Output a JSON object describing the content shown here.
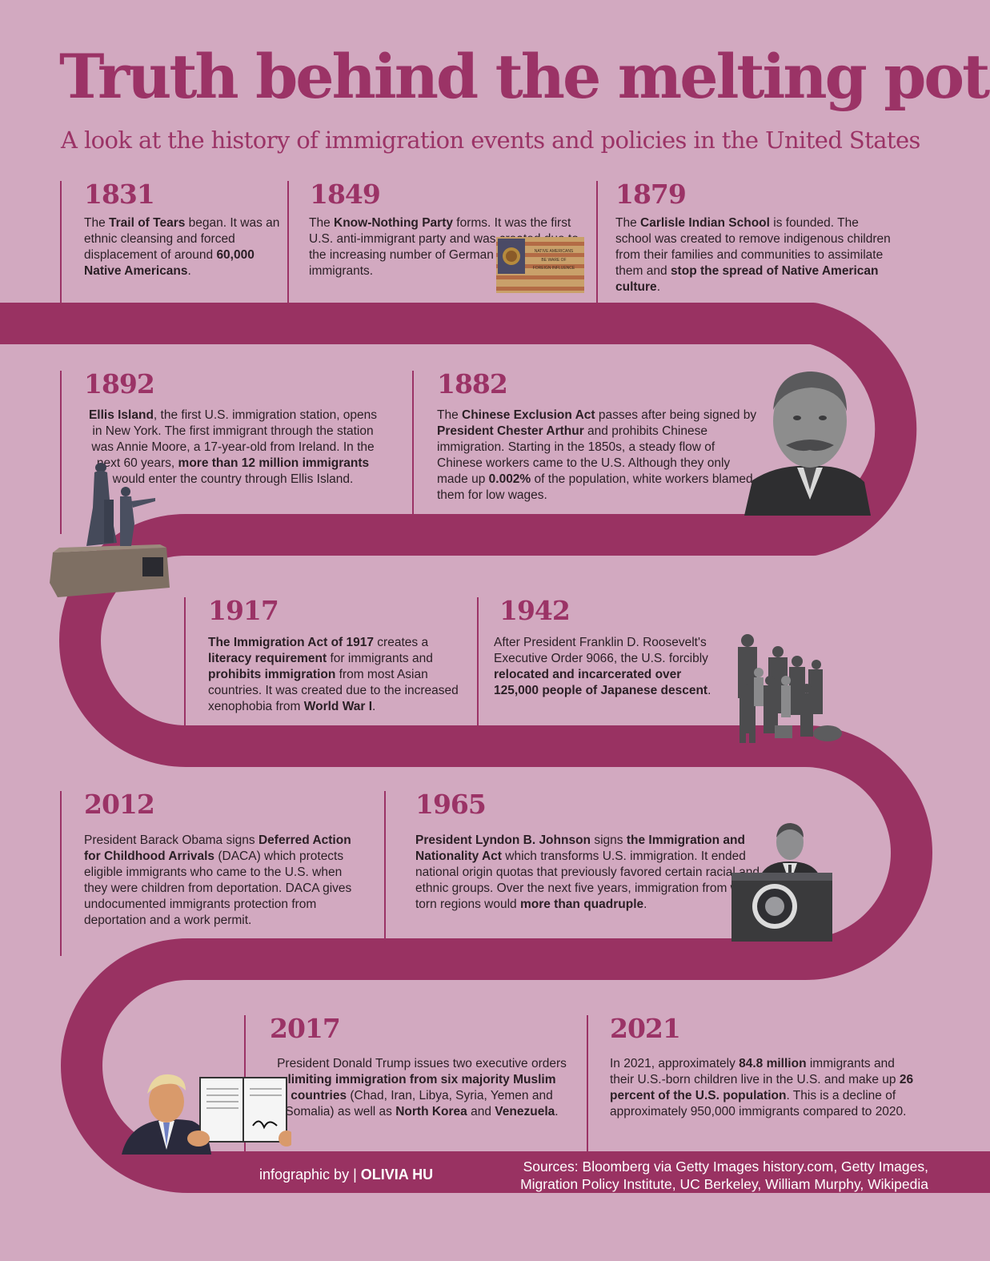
{
  "header": {
    "title": "Truth behind the melting pot",
    "subtitle": "A look at the history of immigration events and policies in the United States"
  },
  "colors": {
    "background": "#d2a9c0",
    "accent": "#9b3366",
    "text": "#2a1f25"
  },
  "events": {
    "e1831": {
      "year": "1831",
      "text": [
        "The ",
        {
          "b": "Trail of Tears"
        },
        " began. It was an ethnic cleansing and forced displacement of around ",
        {
          "b": "60,000 Native Americans"
        },
        "."
      ]
    },
    "e1849": {
      "year": "1849",
      "text": [
        "The ",
        {
          "b": "Know-Nothing Party"
        },
        " forms. It was the first U.S. anti-immigrant party and was created due to the increasing number of German and Irish immigrants."
      ],
      "flag_text": [
        "NATIVE AMERICANS",
        "BE WARE OF",
        "FOREIGN INFLUENCE"
      ]
    },
    "e1879": {
      "year": "1879",
      "text": [
        "The ",
        {
          "b": "Carlisle Indian School"
        },
        " is founded. The school was created to remove indigenous children from their families and communities to assimilate them and ",
        {
          "b": "stop the spread of Native American culture"
        },
        "."
      ]
    },
    "e1892": {
      "year": "1892",
      "text": [
        {
          "b": "Ellis Island"
        },
        ", the first U.S. immigration station, opens in New York. The first immigrant through the station was Annie Moore, a 17-year-old from Ireland. In the next 60 years, ",
        {
          "b": "more than 12 million immigrants"
        },
        " would enter the country through Ellis Island."
      ]
    },
    "e1882": {
      "year": "1882",
      "text": [
        "The ",
        {
          "b": "Chinese Exclusion Act"
        },
        " passes after being signed by ",
        {
          "b": "President Chester Arthur"
        },
        " and prohibits Chinese immigration. Starting in the 1850s, a steady flow of Chinese workers came to the U.S. Although they only made up ",
        {
          "b": "0.002%"
        },
        " of the population, white workers blamed them for low wages."
      ]
    },
    "e1917": {
      "year": "1917",
      "text": [
        {
          "b": "The Immigration Act of 1917"
        },
        " creates a ",
        {
          "b": "literacy requirement"
        },
        " for immigrants and ",
        {
          "b": "prohibits immigration"
        },
        " from most Asian countries. It was created due to the increased xenophobia from ",
        {
          "b": "World War I"
        },
        "."
      ]
    },
    "e1942": {
      "year": "1942",
      "text": [
        "After President Franklin D. Roosevelt's Executive Order 9066, the U.S. forcibly ",
        {
          "b": "relocated and incarcerated over 125,000 people of Japanese descent"
        },
        "."
      ]
    },
    "e2012": {
      "year": "2012",
      "text": [
        "President Barack Obama signs ",
        {
          "b": "Deferred Action for Childhood Arrivals"
        },
        " (DACA) which protects eligible immigrants who came to the U.S. when they were children from deportation. DACA gives undocumented immigrants protection from deportation and a work permit."
      ]
    },
    "e1965": {
      "year": "1965",
      "text": [
        {
          "b": "President Lyndon B. Johnson"
        },
        " signs ",
        {
          "b": "the Immigration and Nationality Act"
        },
        " which transforms U.S. immigration. It ended national origin quotas that previously favored certain racial and ethnic groups. Over the next five years, immigration from war-torn regions would ",
        {
          "b": "more than quadruple"
        },
        "."
      ]
    },
    "e2017": {
      "year": "2017",
      "text": [
        "President Donald Trump issues two executive orders ",
        {
          "b": "limiting immigration from six majority Muslim countries"
        },
        " (Chad, Iran, Libya, Syria, Yemen and Somalia) as well as ",
        {
          "b": "North Korea"
        },
        " and ",
        {
          "b": "Venezuela"
        },
        "."
      ]
    },
    "e2021": {
      "year": "2021",
      "text": [
        "In 2021, approximately ",
        {
          "b": "84.8 million"
        },
        " immigrants and their U.S.-born children live in the U.S. and make up ",
        {
          "b": "26 percent of the U.S. population"
        },
        ". This is a decline of approximately 950,000 immigrants compared to 2020."
      ]
    }
  },
  "footer": {
    "credit_prefix": "infographic by | ",
    "credit_name": "OLIVIA HU",
    "sources": "Sources: Bloomberg via Getty Images history.com, Getty Images, Migration Policy Institute, UC Berkeley, William Murphy, Wikipedia"
  }
}
